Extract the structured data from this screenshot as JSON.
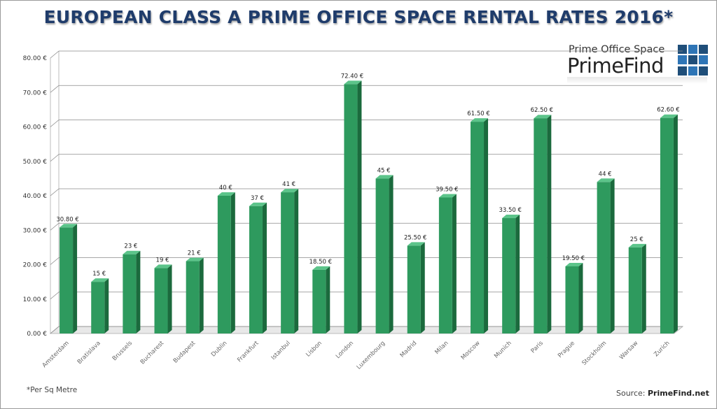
{
  "title": "EUROPEAN CLASS A PRIME OFFICE SPACE RENTAL RATES 2016*",
  "logo": {
    "subtitle": "Prime Office Space",
    "name": "PrimeFind"
  },
  "footnote": "*Per Sq Metre",
  "source": {
    "prefix": "Source: ",
    "site": "PrimeFind.net"
  },
  "colors": {
    "bar": "#2e9a5e",
    "bar_side": "#1b6a3d",
    "bar_top": "#5cc48a",
    "title": "#1f3c6b"
  },
  "chart_data": {
    "type": "bar",
    "categories": [
      "Amsterdam",
      "Bratislava",
      "Brussels",
      "Bucharest",
      "Budapest",
      "Dublin",
      "Frankfurt",
      "Istanbul",
      "Lisbon",
      "London",
      "Luxembourg",
      "Madrid",
      "Milan",
      "Moscow",
      "Munich",
      "Paris",
      "Prague",
      "Stockholm",
      "Warsaw",
      "Zurich"
    ],
    "values": [
      30.8,
      15,
      23,
      19,
      21,
      40,
      37,
      41,
      18.5,
      72.4,
      45,
      25.5,
      39.5,
      61.5,
      33.5,
      62.5,
      19.5,
      44,
      25,
      62.6
    ],
    "data_labels": [
      "30.80 €",
      "15 €",
      "23 €",
      "19 €",
      "21 €",
      "40 €",
      "37 €",
      "41 €",
      "18.50 €",
      "72.40 €",
      "45 €",
      "25.50 €",
      "39.50 €",
      "61.50 €",
      "33.50 €",
      "62.50 €",
      "19.50 €",
      "44 €",
      "25 €",
      "62.60 €"
    ],
    "y_ticks": [
      "0.00 €",
      "10.00 €",
      "20.00 €",
      "30.00 €",
      "40.00 €",
      "50.00 €",
      "60.00 €",
      "70.00 €",
      "80.00 €"
    ],
    "ylim": [
      0,
      80
    ],
    "grid": true,
    "xlabel": "",
    "ylabel": ""
  }
}
